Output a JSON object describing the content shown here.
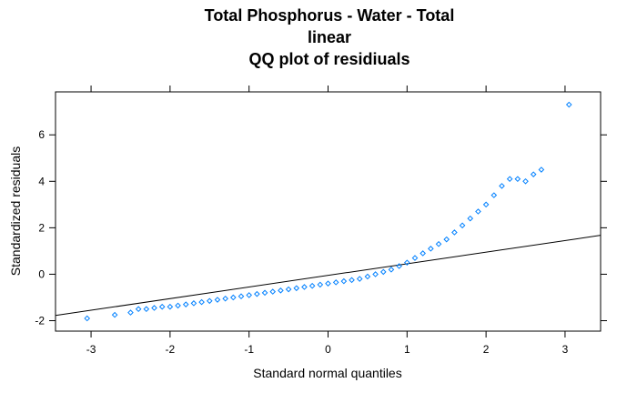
{
  "chart_data": {
    "type": "scatter",
    "title_lines": [
      "Total Phosphorus - Water - Total",
      "linear",
      "QQ plot of residiuals"
    ],
    "xlabel": "Standard normal quantiles",
    "ylabel": "Standardized residuals",
    "xlim": [
      -3.45,
      3.45
    ],
    "ylim": [
      -2.45,
      7.85
    ],
    "x_ticks": [
      -3,
      -2,
      -1,
      0,
      1,
      2,
      3
    ],
    "y_ticks": [
      -2,
      0,
      2,
      4,
      6
    ],
    "grid": false,
    "legend": "none",
    "point_color": "#0080ff",
    "line_color": "#000000",
    "reference_line": {
      "intercept": -0.05,
      "slope": 0.5
    },
    "points": [
      [
        -3.05,
        -1.9
      ],
      [
        -2.7,
        -1.75
      ],
      [
        -2.5,
        -1.65
      ],
      [
        -2.4,
        -1.5
      ],
      [
        -2.3,
        -1.5
      ],
      [
        -2.2,
        -1.45
      ],
      [
        -2.1,
        -1.4
      ],
      [
        -2.0,
        -1.4
      ],
      [
        -1.9,
        -1.35
      ],
      [
        -1.8,
        -1.3
      ],
      [
        -1.7,
        -1.25
      ],
      [
        -1.6,
        -1.2
      ],
      [
        -1.5,
        -1.15
      ],
      [
        -1.4,
        -1.1
      ],
      [
        -1.3,
        -1.05
      ],
      [
        -1.2,
        -1.0
      ],
      [
        -1.1,
        -0.95
      ],
      [
        -1.0,
        -0.9
      ],
      [
        -0.9,
        -0.85
      ],
      [
        -0.8,
        -0.8
      ],
      [
        -0.7,
        -0.75
      ],
      [
        -0.6,
        -0.7
      ],
      [
        -0.5,
        -0.65
      ],
      [
        -0.4,
        -0.6
      ],
      [
        -0.3,
        -0.55
      ],
      [
        -0.2,
        -0.5
      ],
      [
        -0.1,
        -0.45
      ],
      [
        0.0,
        -0.4
      ],
      [
        0.1,
        -0.35
      ],
      [
        0.2,
        -0.3
      ],
      [
        0.3,
        -0.25
      ],
      [
        0.4,
        -0.2
      ],
      [
        0.5,
        -0.1
      ],
      [
        0.6,
        0.0
      ],
      [
        0.7,
        0.1
      ],
      [
        0.8,
        0.2
      ],
      [
        0.9,
        0.35
      ],
      [
        1.0,
        0.5
      ],
      [
        1.1,
        0.7
      ],
      [
        1.2,
        0.9
      ],
      [
        1.3,
        1.1
      ],
      [
        1.4,
        1.3
      ],
      [
        1.5,
        1.5
      ],
      [
        1.6,
        1.8
      ],
      [
        1.7,
        2.1
      ],
      [
        1.8,
        2.4
      ],
      [
        1.9,
        2.7
      ],
      [
        2.0,
        3.0
      ],
      [
        2.1,
        3.4
      ],
      [
        2.2,
        3.8
      ],
      [
        2.3,
        4.1
      ],
      [
        2.4,
        4.1
      ],
      [
        2.5,
        4.0
      ],
      [
        2.6,
        4.3
      ],
      [
        2.7,
        4.5
      ],
      [
        3.05,
        7.3
      ]
    ]
  }
}
